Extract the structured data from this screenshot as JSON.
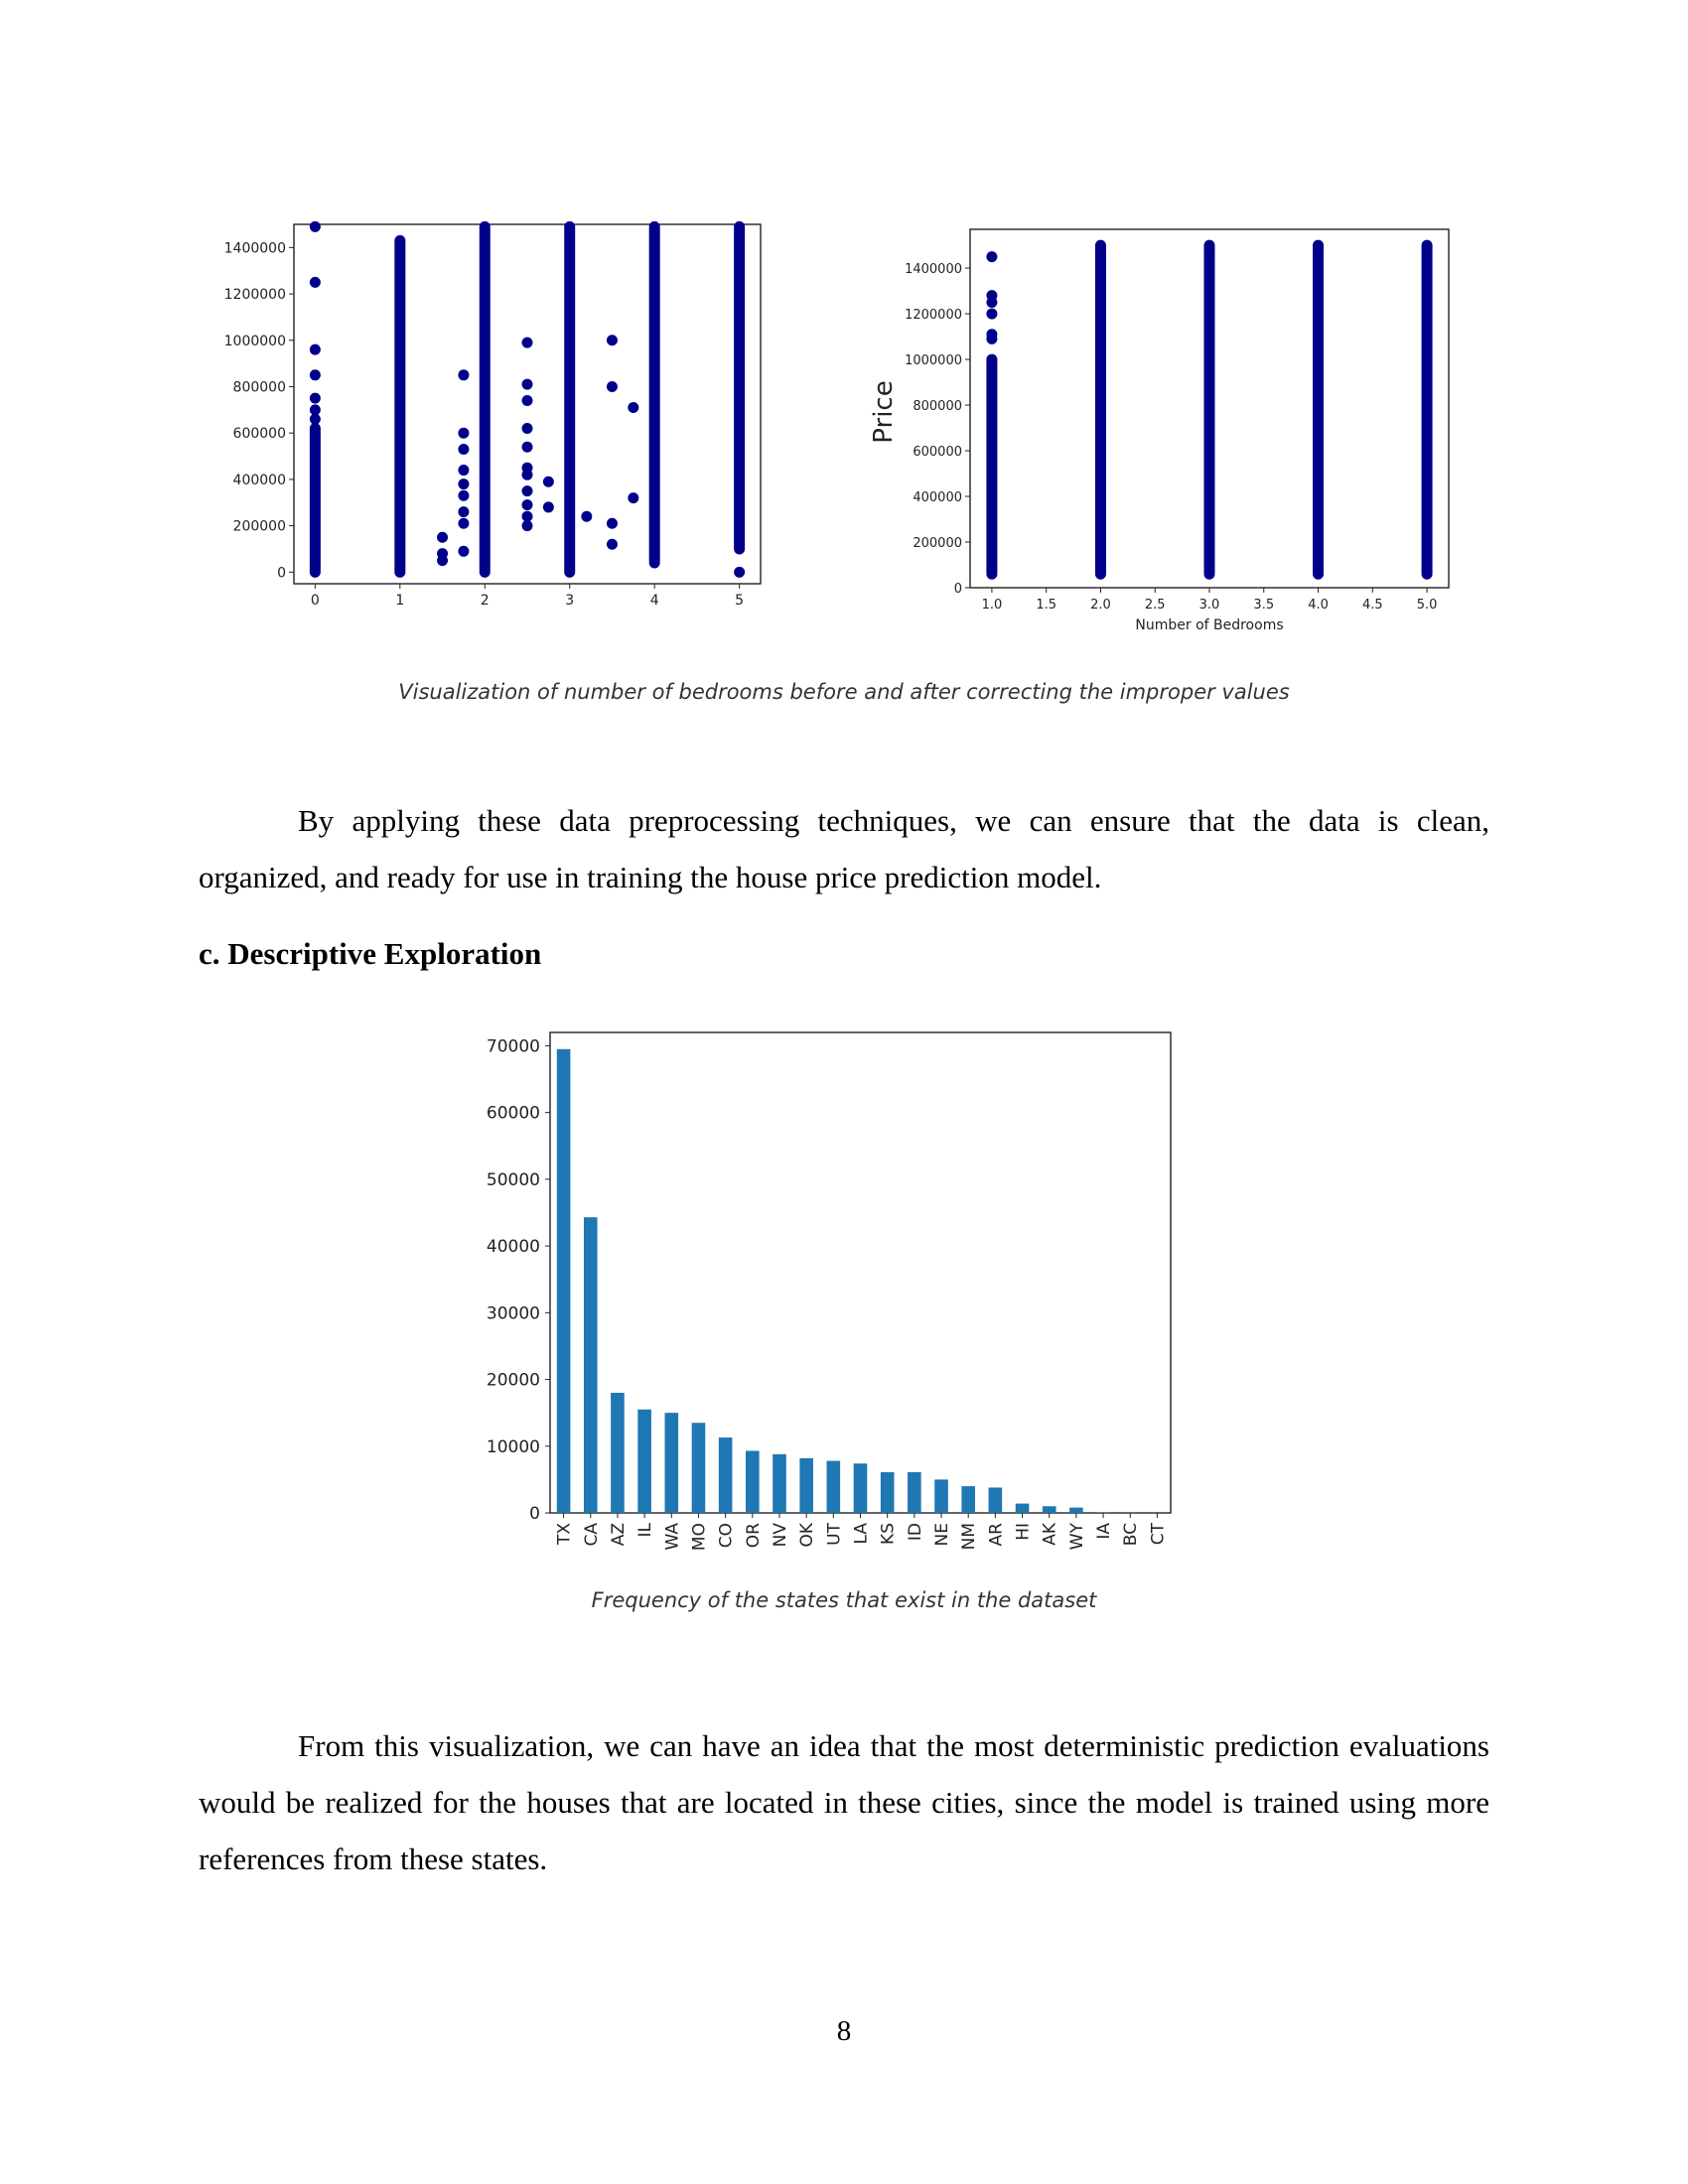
{
  "figure1": {
    "caption": "Visualization of number of bedrooms before and after correcting the improper values"
  },
  "paragraph1": "By applying these data preprocessing techniques, we can ensure that the data is clean, organized, and ready for use in training the house price prediction model.",
  "section_heading": "c. Descriptive Exploration",
  "figure2": {
    "caption": "Frequency of the states that exist in the dataset"
  },
  "paragraph2": "From this visualization, we can have an idea that the most deterministic prediction evaluations would be realized for the houses that are located in these cities, since the model is trained using more references from these states.",
  "page_number": "8",
  "chart_data": [
    {
      "type": "scatter",
      "title": "",
      "xlabel": "",
      "ylabel": "",
      "xlim": [
        -0.25,
        5.25
      ],
      "ylim": [
        -50000,
        1500000
      ],
      "x_ticks": [
        0,
        1,
        2,
        3,
        4,
        5
      ],
      "y_ticks": [
        0,
        200000,
        400000,
        600000,
        800000,
        1000000,
        1200000,
        1400000
      ],
      "color": "#00008b",
      "dense_columns": [
        {
          "x": 0,
          "y_from": 0,
          "y_to": 620000
        },
        {
          "x": 1,
          "y_from": 0,
          "y_to": 1430000
        },
        {
          "x": 2,
          "y_from": 0,
          "y_to": 1490000
        },
        {
          "x": 3,
          "y_from": 0,
          "y_to": 1490000
        },
        {
          "x": 4,
          "y_from": 50000,
          "y_to": 1490000
        },
        {
          "x": 5,
          "y_from": 100000,
          "y_to": 1490000
        }
      ],
      "points": [
        [
          0,
          1490000
        ],
        [
          0,
          1250000
        ],
        [
          0,
          960000
        ],
        [
          0,
          850000
        ],
        [
          0,
          750000
        ],
        [
          0,
          700000
        ],
        [
          0,
          660000
        ],
        [
          1.5,
          150000
        ],
        [
          1.5,
          80000
        ],
        [
          1.5,
          50000
        ],
        [
          1.75,
          850000
        ],
        [
          1.75,
          600000
        ],
        [
          1.75,
          530000
        ],
        [
          1.75,
          440000
        ],
        [
          1.75,
          380000
        ],
        [
          1.75,
          330000
        ],
        [
          1.75,
          260000
        ],
        [
          1.75,
          210000
        ],
        [
          1.75,
          90000
        ],
        [
          2.5,
          990000
        ],
        [
          2.5,
          810000
        ],
        [
          2.5,
          740000
        ],
        [
          2.5,
          620000
        ],
        [
          2.5,
          540000
        ],
        [
          2.5,
          450000
        ],
        [
          2.5,
          420000
        ],
        [
          2.5,
          350000
        ],
        [
          2.5,
          290000
        ],
        [
          2.5,
          240000
        ],
        [
          2.5,
          200000
        ],
        [
          2.75,
          390000
        ],
        [
          2.75,
          280000
        ],
        [
          3.2,
          240000
        ],
        [
          3.5,
          1000000
        ],
        [
          3.5,
          800000
        ],
        [
          3.5,
          210000
        ],
        [
          3.5,
          120000
        ],
        [
          3.75,
          710000
        ],
        [
          3.75,
          320000
        ],
        [
          4,
          40000
        ],
        [
          5,
          0
        ]
      ]
    },
    {
      "type": "scatter",
      "title": "",
      "xlabel": "Number of Bedrooms",
      "ylabel": "Price",
      "xlim": [
        0.8,
        5.2
      ],
      "ylim": [
        0,
        1570000
      ],
      "x_ticks": [
        "1.0",
        "1.5",
        "2.0",
        "2.5",
        "3.0",
        "3.5",
        "4.0",
        "4.5",
        "5.0"
      ],
      "y_ticks": [
        0,
        200000,
        400000,
        600000,
        800000,
        1000000,
        1200000,
        1400000
      ],
      "color": "#00008b",
      "dense_columns": [
        {
          "x": 1,
          "y_from": 60000,
          "y_to": 1000000
        },
        {
          "x": 2,
          "y_from": 60000,
          "y_to": 1500000
        },
        {
          "x": 3,
          "y_from": 60000,
          "y_to": 1500000
        },
        {
          "x": 4,
          "y_from": 60000,
          "y_to": 1500000
        },
        {
          "x": 5,
          "y_from": 60000,
          "y_to": 1500000
        }
      ],
      "points": [
        [
          1,
          1450000
        ],
        [
          1,
          1280000
        ],
        [
          1,
          1250000
        ],
        [
          1,
          1200000
        ],
        [
          1,
          1110000
        ],
        [
          1,
          1090000
        ]
      ]
    },
    {
      "type": "bar",
      "title": "",
      "xlabel": "",
      "ylabel": "",
      "ylim": [
        0,
        72000
      ],
      "y_ticks": [
        0,
        10000,
        20000,
        30000,
        40000,
        50000,
        60000,
        70000
      ],
      "color": "#1f77b4",
      "categories": [
        "TX",
        "CA",
        "AZ",
        "IL",
        "WA",
        "MO",
        "CO",
        "OR",
        "NV",
        "OK",
        "UT",
        "LA",
        "KS",
        "ID",
        "NE",
        "NM",
        "AR",
        "HI",
        "AK",
        "WY",
        "IA",
        "BC",
        "CT"
      ],
      "values": [
        69500,
        44300,
        18000,
        15500,
        15000,
        13500,
        11300,
        9300,
        8800,
        8200,
        7800,
        7400,
        6100,
        6100,
        5000,
        4000,
        3800,
        1400,
        1000,
        800,
        50,
        20,
        10
      ]
    }
  ]
}
